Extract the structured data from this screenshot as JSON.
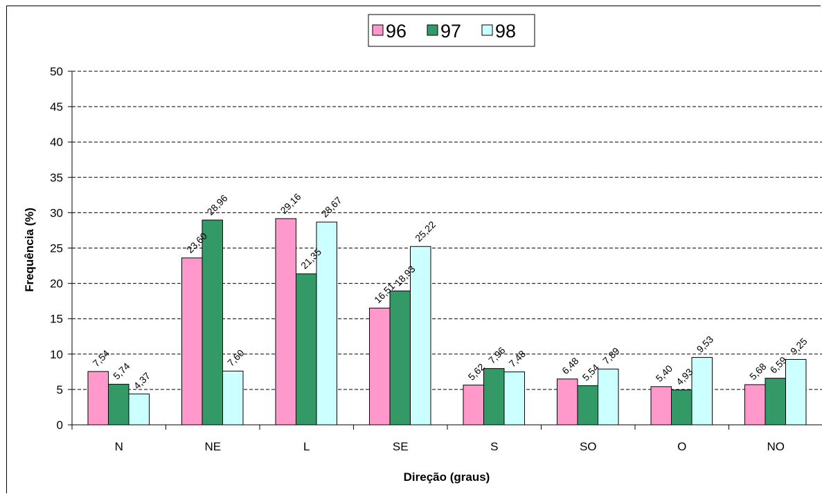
{
  "chart_data": {
    "type": "bar",
    "categories": [
      "N",
      "NE",
      "L",
      "SE",
      "S",
      "SO",
      "O",
      "NO"
    ],
    "series": [
      {
        "name": "96",
        "color": "#ff99cc",
        "values": [
          7.54,
          23.6,
          29.16,
          16.51,
          5.62,
          6.48,
          5.4,
          5.68
        ],
        "labels": [
          "7,54",
          "23,60",
          "29,16",
          "16,51",
          "5,62",
          "6,48",
          "5,40",
          "5,68"
        ]
      },
      {
        "name": "97",
        "color": "#339966",
        "values": [
          5.74,
          28.96,
          21.35,
          18.93,
          7.96,
          5.54,
          4.93,
          6.59
        ],
        "labels": [
          "5,74",
          "28,96",
          "21,35",
          "18,93",
          "7,96",
          "5,54",
          "4,93",
          "6,59"
        ]
      },
      {
        "name": "98",
        "color": "#ccffff",
        "values": [
          4.37,
          7.6,
          28.67,
          25.22,
          7.48,
          7.89,
          9.53,
          9.25
        ],
        "labels": [
          "4,37",
          "7,60",
          "28,67",
          "25,22",
          "7,48",
          "7,89",
          "9,53",
          "9,25"
        ]
      }
    ],
    "xlabel": "Direção (graus)",
    "ylabel": "Frequência (%)",
    "ylim": [
      0,
      50
    ],
    "yticks": [
      "0",
      "5",
      "10",
      "15",
      "20",
      "25",
      "30",
      "35",
      "40",
      "45",
      "50"
    ],
    "grid": "horizontal dashed",
    "legend_position": "top-center"
  }
}
